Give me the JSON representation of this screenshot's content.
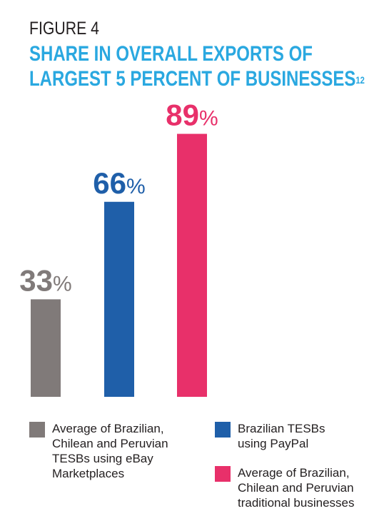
{
  "figure_label": "FIGURE 4",
  "title_line1": "SHARE IN OVERALL EXPORTS OF",
  "title_line2": "LARGEST 5 PERCENT OF BUSINESSES",
  "title_footnote": "12",
  "chart_data": {
    "type": "bar",
    "categories": [
      "Average of Brazilian, Chilean and Peruvian TESBs using eBay Marketplaces",
      "Brazilian TESBs using PayPal",
      "Average of Brazilian, Chilean and Peruvian traditional businesses"
    ],
    "values": [
      33,
      66,
      89
    ],
    "data_labels": [
      "33",
      "66",
      "89"
    ],
    "unit": "%",
    "colors": [
      "#807a79",
      "#1f5fa9",
      "#e8306a"
    ],
    "title": "SHARE IN OVERALL EXPORTS OF LARGEST 5 PERCENT OF BUSINESSES",
    "ylim": [
      0,
      100
    ],
    "grid": false,
    "legend_position": "bottom"
  },
  "legend": [
    {
      "lines": [
        "Average of Brazilian,",
        "Chilean and Peruvian",
        "TESBs using eBay",
        "Marketplaces"
      ],
      "color": "#807a79"
    },
    {
      "lines": [
        "Brazilian TESBs",
        "using PayPal"
      ],
      "color": "#1f5fa9"
    },
    {
      "lines": [
        "Average of Brazilian,",
        "Chilean and Peruvian",
        "traditional businesses"
      ],
      "color": "#e8306a"
    }
  ]
}
